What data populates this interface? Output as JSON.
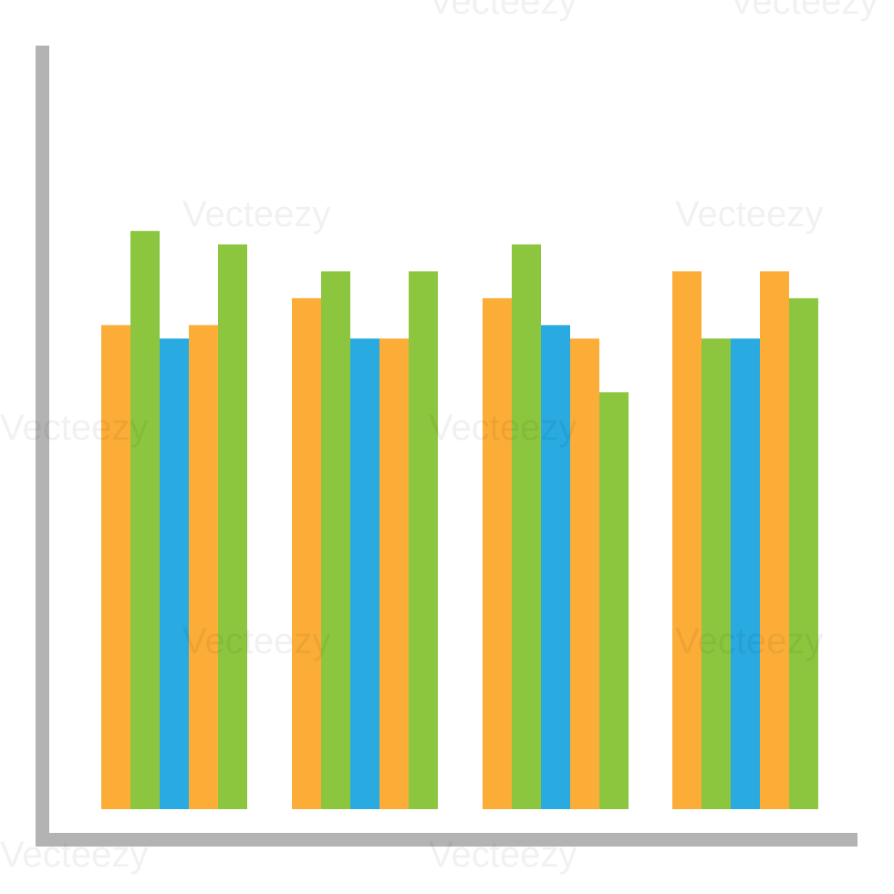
{
  "chart_data": {
    "type": "bar",
    "title": "",
    "xlabel": "",
    "ylabel": "",
    "grid": false,
    "legend": "none",
    "axis_color": "#b3b3b3",
    "ylim": [
      0,
      100
    ],
    "groups": [
      {
        "bars": [
          {
            "value": 72,
            "color": "#fbad38"
          },
          {
            "value": 86,
            "color": "#8cc63f"
          },
          {
            "value": 70,
            "color": "#29aae1"
          },
          {
            "value": 72,
            "color": "#fbad38"
          },
          {
            "value": 84,
            "color": "#8cc63f"
          }
        ]
      },
      {
        "bars": [
          {
            "value": 76,
            "color": "#fbad38"
          },
          {
            "value": 80,
            "color": "#8cc63f"
          },
          {
            "value": 70,
            "color": "#29aae1"
          },
          {
            "value": 70,
            "color": "#fbad38"
          },
          {
            "value": 80,
            "color": "#8cc63f"
          }
        ]
      },
      {
        "bars": [
          {
            "value": 76,
            "color": "#fbad38"
          },
          {
            "value": 84,
            "color": "#8cc63f"
          },
          {
            "value": 72,
            "color": "#29aae1"
          },
          {
            "value": 70,
            "color": "#fbad38"
          },
          {
            "value": 62,
            "color": "#8cc63f"
          }
        ]
      },
      {
        "bars": [
          {
            "value": 80,
            "color": "#fbad38"
          },
          {
            "value": 70,
            "color": "#8cc63f"
          },
          {
            "value": 70,
            "color": "#29aae1"
          },
          {
            "value": 80,
            "color": "#fbad38"
          },
          {
            "value": 76,
            "color": "#8cc63f"
          }
        ]
      }
    ]
  },
  "watermark": {
    "text": "Vecteezy"
  }
}
